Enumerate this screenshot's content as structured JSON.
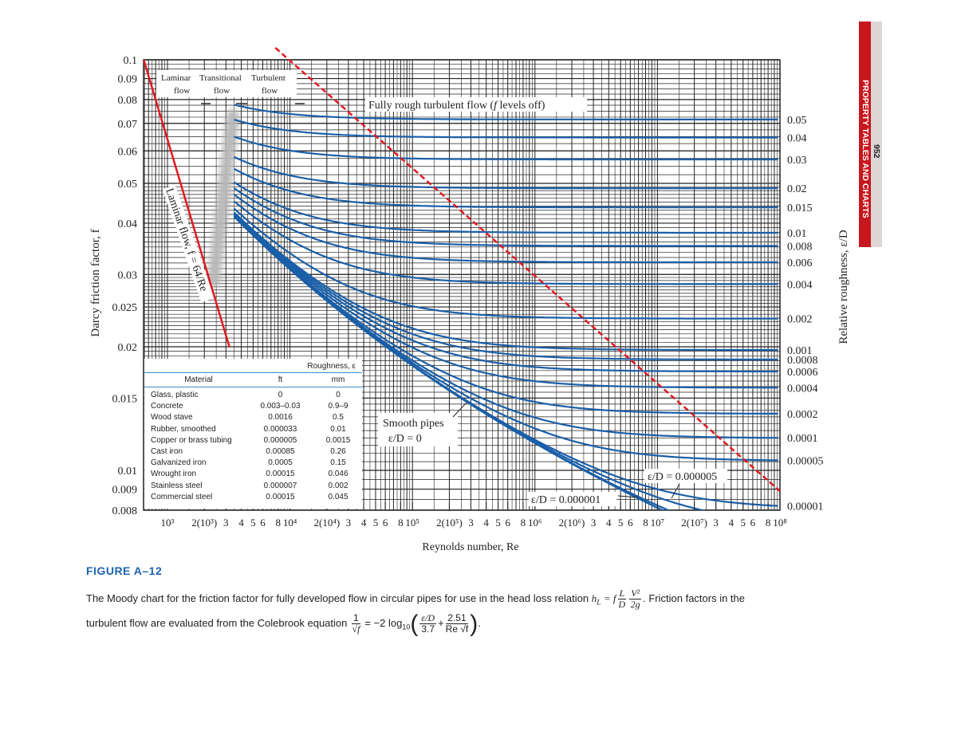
{
  "page": {
    "page_number": "952",
    "section_title": "PROPERTY TABLES AND CHARTS",
    "sidebar_colors": {
      "red": "#c8161e",
      "gray": "#dcd6d6"
    }
  },
  "figure": {
    "label": "FIGURE A–12",
    "caption_part1": "The Moody chart for the friction factor for fully developed flow in circular pipes for use in the head loss relation",
    "eq1_lhs": "h",
    "eq1_sub": "L",
    "eq1_eq": "= f",
    "eq1_frac1_num": "L",
    "eq1_frac1_den": "D",
    "eq1_frac2_num": "V²",
    "eq1_frac2_den": "2g",
    "caption_part2": ". Friction factors in the",
    "caption_part3": "turbulent flow are evaluated from the Colebrook equation",
    "eq2_frac_num": "1",
    "eq2_frac_den": "√f",
    "eq2_mid": "= −2 log",
    "eq2_sub": "10",
    "eq2_t1_num": "ε/D",
    "eq2_t1_den": "3.7",
    "eq2_plus": "+",
    "eq2_t2_num": "2.51",
    "eq2_t2_den": "Re √f",
    "eq2_end": "."
  },
  "chart_data": {
    "type": "line",
    "title": "",
    "xlabel": "Reynolds number, Re",
    "ylabel": "Darcy friction factor, f",
    "y2label": "Relative roughness, ε/D",
    "xscale": "log",
    "yscale": "log",
    "xlim": [
      640,
      100000000
    ],
    "ylim": [
      0.008,
      0.1
    ],
    "grid": true,
    "colors": {
      "turbulent_curves": "#1a5fa8",
      "laminar_line": "#e3191f",
      "rough_boundary": "#e3191f",
      "grid": "#222222"
    },
    "x_ticks": [
      {
        "value": 1000,
        "label": "10³"
      },
      {
        "value": 2000,
        "label": "2(10³)"
      },
      {
        "value": 3000,
        "label": "3"
      },
      {
        "value": 4000,
        "label": "4"
      },
      {
        "value": 5000,
        "label": "5"
      },
      {
        "value": 6000,
        "label": "6"
      },
      {
        "value": 8000,
        "label": "8"
      },
      {
        "value": 10000,
        "label": "10⁴"
      },
      {
        "value": 20000,
        "label": "2(10⁴)"
      },
      {
        "value": 30000,
        "label": "3"
      },
      {
        "value": 40000,
        "label": "4"
      },
      {
        "value": 50000,
        "label": "5"
      },
      {
        "value": 60000,
        "label": "6"
      },
      {
        "value": 80000,
        "label": "8"
      },
      {
        "value": 100000,
        "label": "10⁵"
      },
      {
        "value": 200000,
        "label": "2(10⁵)"
      },
      {
        "value": 300000,
        "label": "3"
      },
      {
        "value": 400000,
        "label": "4"
      },
      {
        "value": 500000,
        "label": "5"
      },
      {
        "value": 600000,
        "label": "6"
      },
      {
        "value": 800000,
        "label": "8"
      },
      {
        "value": 1000000,
        "label": "10⁶"
      },
      {
        "value": 2000000,
        "label": "2(10⁶)"
      },
      {
        "value": 3000000,
        "label": "3"
      },
      {
        "value": 4000000,
        "label": "4"
      },
      {
        "value": 5000000,
        "label": "5"
      },
      {
        "value": 6000000,
        "label": "6"
      },
      {
        "value": 8000000,
        "label": "8"
      },
      {
        "value": 10000000,
        "label": "10⁷"
      },
      {
        "value": 20000000,
        "label": "2(10⁷)"
      },
      {
        "value": 30000000,
        "label": "3"
      },
      {
        "value": 40000000,
        "label": "4"
      },
      {
        "value": 50000000,
        "label": "5"
      },
      {
        "value": 60000000,
        "label": "6"
      },
      {
        "value": 80000000,
        "label": "8"
      },
      {
        "value": 100000000,
        "label": "10⁸"
      }
    ],
    "y_ticks": [
      {
        "value": 0.1,
        "label": "0.1"
      },
      {
        "value": 0.09,
        "label": "0.09"
      },
      {
        "value": 0.08,
        "label": "0.08"
      },
      {
        "value": 0.07,
        "label": "0.07"
      },
      {
        "value": 0.06,
        "label": "0.06"
      },
      {
        "value": 0.05,
        "label": "0.05"
      },
      {
        "value": 0.04,
        "label": "0.04"
      },
      {
        "value": 0.03,
        "label": "0.03"
      },
      {
        "value": 0.025,
        "label": "0.025"
      },
      {
        "value": 0.02,
        "label": "0.02"
      },
      {
        "value": 0.015,
        "label": "0.015"
      },
      {
        "value": 0.01,
        "label": "0.01"
      },
      {
        "value": 0.009,
        "label": "0.009"
      },
      {
        "value": 0.008,
        "label": "0.008"
      }
    ],
    "series": [
      {
        "name": "0.05",
        "relative_roughness": 0.05,
        "labeled": true
      },
      {
        "name": "0.04",
        "relative_roughness": 0.04,
        "labeled": true
      },
      {
        "name": "0.03",
        "relative_roughness": 0.03,
        "labeled": true
      },
      {
        "name": "0.02",
        "relative_roughness": 0.02,
        "labeled": true
      },
      {
        "name": "0.015",
        "relative_roughness": 0.015,
        "labeled": true
      },
      {
        "name": "0.01",
        "relative_roughness": 0.01,
        "labeled": true
      },
      {
        "name": "0.008",
        "relative_roughness": 0.008,
        "labeled": true
      },
      {
        "name": "0.006",
        "relative_roughness": 0.006,
        "labeled": true
      },
      {
        "name": "0.004",
        "relative_roughness": 0.004,
        "labeled": true
      },
      {
        "name": "0.002",
        "relative_roughness": 0.002,
        "labeled": true
      },
      {
        "name": "0.001",
        "relative_roughness": 0.001,
        "labeled": true
      },
      {
        "name": "0.0008",
        "relative_roughness": 0.0008,
        "labeled": true
      },
      {
        "name": "0.0006",
        "relative_roughness": 0.0006,
        "labeled": true
      },
      {
        "name": "0.0004",
        "relative_roughness": 0.0004,
        "labeled": true
      },
      {
        "name": "0.0002",
        "relative_roughness": 0.0002,
        "labeled": true
      },
      {
        "name": "0.0001",
        "relative_roughness": 0.0001,
        "labeled": true
      },
      {
        "name": "0.00005",
        "relative_roughness": 5e-05,
        "labeled": true
      },
      {
        "name": "0.00001",
        "relative_roughness": 1e-05,
        "labeled": true
      },
      {
        "name": "ε/D = 0.000005",
        "relative_roughness": 5e-06,
        "labeled": false
      },
      {
        "name": "ε/D = 0.000001",
        "relative_roughness": 1e-06,
        "labeled": false
      },
      {
        "name": "Smooth pipes ε/D = 0",
        "relative_roughness": 0,
        "labeled": false
      }
    ],
    "turbulent_re_start": 3500,
    "laminar": {
      "label": "Laminar flow, f = 64/Re",
      "re_range": [
        640,
        3300
      ]
    },
    "rough_boundary_points": [
      [
        7600,
        0.1
      ],
      [
        100000000,
        0.0089
      ]
    ],
    "annotations": {
      "regime_laminar_1": "Laminar",
      "regime_laminar_2": "flow",
      "regime_transitional_1": "Transitional",
      "regime_transitional_2": "flow",
      "regime_turbulent_1": "Turbulent",
      "regime_turbulent_2": "flow",
      "fully_rough": "Fully rough turbulent flow (",
      "fully_rough_f": "f",
      "fully_rough_end": " levels off)",
      "smooth_1": "Smooth pipes",
      "smooth_2": "ε/D = 0",
      "ed_000005": "ε/D = 0.000005",
      "ed_000001": "ε/D = 0.000001"
    }
  },
  "materials_table": {
    "group_header": "Roughness, ε",
    "columns": [
      "Material",
      "ft",
      "mm"
    ],
    "rows": [
      [
        "Glass, plastic",
        "0",
        "0"
      ],
      [
        "Concrete",
        "0.003–0.03",
        "0.9–9"
      ],
      [
        "Wood stave",
        "0.0016",
        "0.5"
      ],
      [
        "Rubber, smoothed",
        "0.000033",
        "0.01"
      ],
      [
        "Copper or brass tubing",
        "0.000005",
        "0.0015"
      ],
      [
        "Cast iron",
        "0.00085",
        "0.26"
      ],
      [
        "Galvanized iron",
        "0.0005",
        "0.15"
      ],
      [
        "Wrought iron",
        "0.00015",
        "0.046"
      ],
      [
        "Stainless steel",
        "0.000007",
        "0.002"
      ],
      [
        "Commercial steel",
        "0.00015",
        "0.045"
      ]
    ]
  }
}
